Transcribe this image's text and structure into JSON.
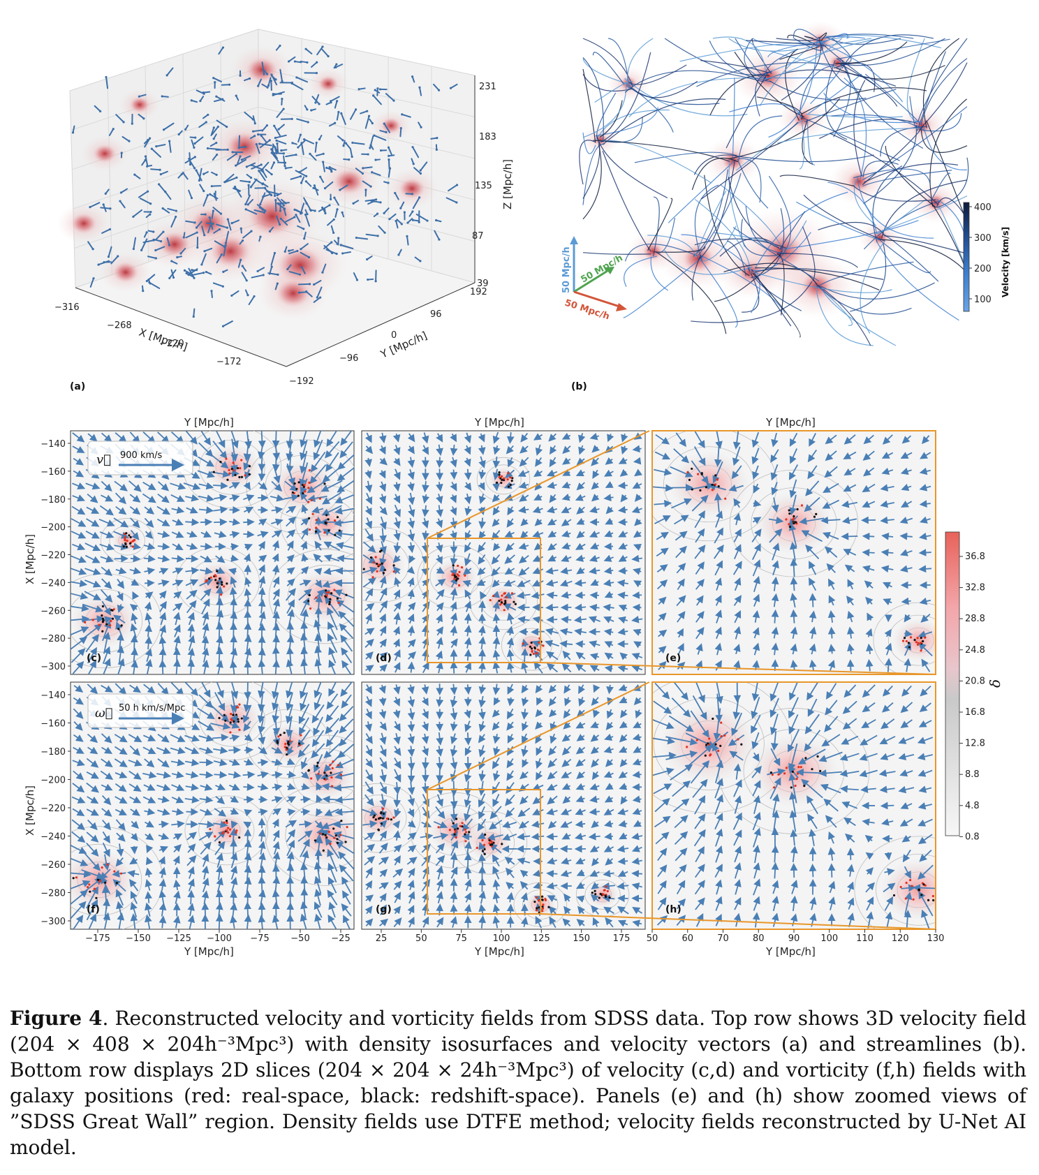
{
  "panel_a": {
    "label": "(a)",
    "x_axis_title": "X [Mpc/h]",
    "x_ticks": [
      "−316",
      "−268",
      "−220",
      "−172"
    ],
    "y_axis_title": "Y [Mpc/h]",
    "y_ticks": [
      "−192",
      "−96",
      "0",
      "96",
      "192"
    ],
    "z_axis_title": "Z [Mpc/h]",
    "z_ticks": [
      "231",
      "183",
      "135",
      "87",
      "39"
    ]
  },
  "panel_b": {
    "label": "(b)",
    "scale_x": "50 Mpc/h",
    "scale_y": "50 Mpc/h",
    "scale_z": "50 Mpc/h",
    "colorbar_title": "Velocity [km/s]",
    "colorbar_ticks": [
      "400",
      "300",
      "200",
      "100"
    ],
    "colorbar_colors": [
      "#0d1b3a",
      "#1f4b8f",
      "#3d7fd0",
      "#6aa3e6"
    ]
  },
  "grid": {
    "top_axis_title": "Y [Mpc/h]",
    "y_axis_title": "X [Mpc/h]",
    "bottom_axis_title": "Y [Mpc/h]",
    "x_ticks_left": [
      "−175",
      "−150",
      "−125",
      "−100",
      "−75",
      "−50",
      "−25"
    ],
    "x_ticks_mid": [
      "25",
      "50",
      "75",
      "100",
      "125",
      "150",
      "175"
    ],
    "x_ticks_right": [
      "50",
      "60",
      "70",
      "80",
      "90",
      "100",
      "110",
      "120",
      "130"
    ],
    "y_ticks": [
      "−140",
      "−160",
      "−180",
      "−200",
      "−220",
      "−240",
      "−260",
      "−280",
      "−300"
    ],
    "panel_labels": [
      "(c)",
      "(d)",
      "(e)",
      "(f)",
      "(g)",
      "(h)"
    ],
    "legend_velocity_symbol": "v⃗",
    "legend_velocity_text": "900 km/s",
    "legend_vorticity_symbol": "ω⃗",
    "legend_vorticity_text": "50 h km/s/Mpc",
    "colorbar_title": "δ",
    "colorbar_ticks": [
      "36.8",
      "32.8",
      "28.8",
      "24.8",
      "20.8",
      "16.8",
      "12.8",
      "8.8",
      "4.8",
      "0.8"
    ],
    "colors": {
      "arrow": "#4a7fb5",
      "zoom_box": "#e8962a",
      "galaxy_real": "#e0321f",
      "galaxy_redshift": "#111111",
      "density_high": "#f08080"
    }
  },
  "caption": {
    "figure_label": "Figure 4",
    "text": ". Reconstructed velocity and vorticity fields from SDSS data. Top row shows 3D velocity field (204 × 408 × 204h⁻³Mpc³) with density isosurfaces and velocity vectors (a) and streamlines (b). Bottom row displays 2D slices (204 × 204 × 24h⁻³Mpc³) of velocity (c,d) and vorticity (f,h) fields with galaxy positions (red: real-space, black: redshift-space). Panels (e) and (h) show zoomed views of ”SDSS Great Wall” region. Density fields use DTFE method; velocity fields reconstructed by U-Net AI model."
  }
}
